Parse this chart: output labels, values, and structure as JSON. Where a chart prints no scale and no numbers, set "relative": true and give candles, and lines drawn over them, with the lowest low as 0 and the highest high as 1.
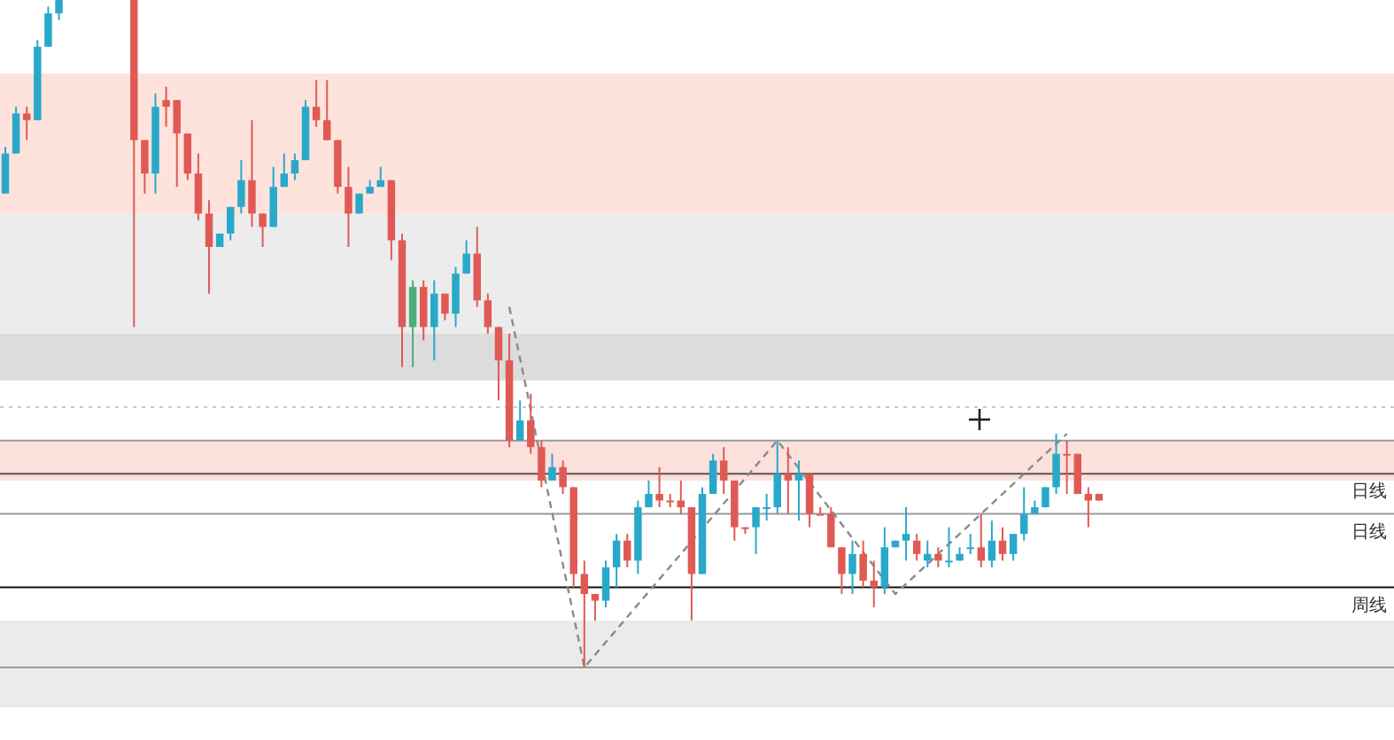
{
  "chart_data": {
    "type": "candlestick",
    "relative": true,
    "categories": [
      null,
      null,
      null,
      null,
      null,
      null,
      null,
      null,
      null,
      null,
      null,
      null,
      null,
      null,
      null,
      null,
      null,
      null,
      null,
      null,
      null,
      null,
      null,
      null,
      null,
      null,
      null,
      null,
      null,
      null,
      null,
      null,
      null,
      null,
      null,
      null,
      null,
      null,
      null,
      null,
      null,
      null,
      null,
      null,
      null,
      null,
      null,
      null,
      null,
      null,
      null,
      null,
      null,
      null,
      null,
      null,
      null,
      null,
      null,
      null,
      null,
      null,
      null,
      null,
      null,
      null,
      null,
      null,
      null,
      null,
      null,
      null,
      null,
      null,
      null,
      null,
      null,
      null,
      null,
      null,
      null,
      null,
      null,
      null,
      null,
      null,
      null,
      null,
      null,
      null,
      null,
      null,
      null,
      null,
      null,
      null,
      null,
      null,
      null,
      null,
      null,
      null,
      null
    ],
    "ohlc": [
      [
        0.71,
        0.78,
        0.71,
        0.77
      ],
      [
        0.77,
        0.84,
        0.77,
        0.83
      ],
      [
        0.83,
        0.84,
        0.79,
        0.82
      ],
      [
        0.82,
        0.94,
        0.82,
        0.93
      ],
      [
        0.93,
        0.99,
        0.93,
        0.98
      ],
      [
        0.98,
        1.0,
        0.97,
        1.0
      ],
      null,
      null,
      null,
      null,
      null,
      null,
      [
        1.0,
        1.0,
        0.51,
        0.79
      ],
      [
        0.79,
        0.79,
        0.71,
        0.74
      ],
      [
        0.74,
        0.86,
        0.71,
        0.84
      ],
      [
        0.85,
        0.87,
        0.81,
        0.84
      ],
      [
        0.85,
        0.85,
        0.72,
        0.8
      ],
      [
        0.8,
        0.8,
        0.73,
        0.74
      ],
      [
        0.74,
        0.77,
        0.67,
        0.68
      ],
      [
        0.68,
        0.7,
        0.56,
        0.63
      ],
      [
        0.63,
        0.65,
        0.63,
        0.65
      ],
      [
        0.65,
        0.69,
        0.64,
        0.69
      ],
      [
        0.69,
        0.76,
        0.68,
        0.73
      ],
      [
        0.73,
        0.82,
        0.66,
        0.68
      ],
      [
        0.68,
        0.68,
        0.63,
        0.66
      ],
      [
        0.66,
        0.75,
        0.66,
        0.72
      ],
      [
        0.72,
        0.77,
        0.72,
        0.74
      ],
      [
        0.74,
        0.77,
        0.73,
        0.76
      ],
      [
        0.76,
        0.85,
        0.76,
        0.84
      ],
      [
        0.84,
        0.88,
        0.81,
        0.82
      ],
      [
        0.82,
        0.88,
        0.79,
        0.79
      ],
      [
        0.79,
        0.79,
        0.71,
        0.72
      ],
      [
        0.72,
        0.75,
        0.63,
        0.68
      ],
      [
        0.68,
        0.71,
        0.68,
        0.71
      ],
      [
        0.71,
        0.73,
        0.71,
        0.72
      ],
      [
        0.72,
        0.75,
        0.72,
        0.73
      ],
      [
        0.73,
        0.73,
        0.61,
        0.64
      ],
      [
        0.64,
        0.65,
        0.45,
        0.51
      ],
      [
        0.51,
        0.58,
        0.45,
        0.57
      ],
      [
        0.57,
        0.58,
        0.49,
        0.51
      ],
      [
        0.51,
        0.58,
        0.46,
        0.56
      ],
      [
        0.56,
        0.56,
        0.52,
        0.53
      ],
      [
        0.53,
        0.6,
        0.51,
        0.59
      ],
      [
        0.59,
        0.64,
        0.59,
        0.62
      ],
      [
        0.62,
        0.66,
        0.54,
        0.55
      ],
      [
        0.55,
        0.56,
        0.5,
        0.51
      ],
      [
        0.51,
        0.51,
        0.4,
        0.46
      ],
      [
        0.46,
        0.5,
        0.33,
        0.34
      ],
      [
        0.34,
        0.4,
        0.34,
        0.37
      ],
      [
        0.37,
        0.41,
        0.32,
        0.33
      ],
      [
        0.33,
        0.34,
        0.27,
        0.28
      ],
      [
        0.28,
        0.32,
        0.28,
        0.3
      ],
      [
        0.3,
        0.31,
        0.26,
        0.27
      ],
      [
        0.27,
        0.27,
        0.12,
        0.14
      ],
      [
        0.14,
        0.16,
        0.0,
        0.11
      ],
      [
        0.11,
        0.11,
        0.07,
        0.1
      ],
      [
        0.1,
        0.16,
        0.09,
        0.15
      ],
      [
        0.15,
        0.2,
        0.12,
        0.19
      ],
      [
        0.19,
        0.2,
        0.15,
        0.16
      ],
      [
        0.16,
        0.25,
        0.14,
        0.24
      ],
      [
        0.24,
        0.28,
        0.24,
        0.26
      ],
      [
        0.26,
        0.3,
        0.24,
        0.25
      ],
      [
        0.25,
        0.26,
        0.24,
        0.25
      ],
      [
        0.25,
        0.28,
        0.23,
        0.24
      ],
      [
        0.24,
        0.24,
        0.07,
        0.14
      ],
      [
        0.14,
        0.27,
        0.14,
        0.26
      ],
      [
        0.26,
        0.32,
        0.26,
        0.31
      ],
      [
        0.31,
        0.33,
        0.26,
        0.28
      ],
      [
        0.28,
        0.28,
        0.19,
        0.21
      ],
      [
        0.21,
        0.21,
        0.2,
        0.21
      ],
      [
        0.21,
        0.24,
        0.17,
        0.24
      ],
      [
        0.24,
        0.26,
        0.22,
        0.24
      ],
      [
        0.24,
        0.34,
        0.23,
        0.29
      ],
      [
        0.29,
        0.33,
        0.23,
        0.28
      ],
      [
        0.28,
        0.31,
        0.22,
        0.29
      ],
      [
        0.29,
        0.29,
        0.21,
        0.23
      ],
      [
        0.23,
        0.24,
        0.23,
        0.23
      ],
      [
        0.23,
        0.24,
        0.18,
        0.18
      ],
      [
        0.18,
        0.18,
        0.11,
        0.14
      ],
      [
        0.14,
        0.19,
        0.11,
        0.17
      ],
      [
        0.17,
        0.19,
        0.12,
        0.13
      ],
      [
        0.13,
        0.16,
        0.09,
        0.12
      ],
      [
        0.12,
        0.21,
        0.11,
        0.18
      ],
      [
        0.18,
        0.19,
        0.18,
        0.19
      ],
      [
        0.19,
        0.24,
        0.16,
        0.2
      ],
      [
        0.19,
        0.2,
        0.16,
        0.17
      ],
      [
        0.16,
        0.19,
        0.15,
        0.17
      ],
      [
        0.17,
        0.18,
        0.15,
        0.16
      ],
      [
        0.16,
        0.21,
        0.15,
        0.16
      ],
      [
        0.16,
        0.18,
        0.16,
        0.17
      ],
      [
        0.18,
        0.2,
        0.17,
        0.18
      ],
      [
        0.18,
        0.23,
        0.15,
        0.16
      ],
      [
        0.16,
        0.22,
        0.15,
        0.19
      ],
      [
        0.19,
        0.21,
        0.16,
        0.17
      ],
      [
        0.17,
        0.2,
        0.16,
        0.2
      ],
      [
        0.2,
        0.27,
        0.19,
        0.23
      ],
      [
        0.23,
        0.25,
        0.23,
        0.24
      ],
      [
        0.24,
        0.27,
        0.24,
        0.27
      ],
      [
        0.27,
        0.35,
        0.26,
        0.32
      ],
      [
        0.32,
        0.34,
        0.26,
        0.32
      ],
      [
        0.32,
        0.32,
        0.26,
        0.26
      ],
      [
        0.26,
        0.27,
        0.21,
        0.25
      ],
      [
        0.26,
        0.26,
        0.25,
        0.25
      ]
    ],
    "colors": [
      "#29a9c9",
      "#29a9c9",
      "#e05a55",
      "#29a9c9",
      "#29a9c9",
      "#29a9c9",
      null,
      null,
      null,
      null,
      null,
      null,
      "#e05a55",
      "#e05a55",
      "#29a9c9",
      "#e05a55",
      "#e05a55",
      "#e05a55",
      "#e05a55",
      "#e05a55",
      "#29a9c9",
      "#29a9c9",
      "#29a9c9",
      "#e05a55",
      "#e05a55",
      "#29a9c9",
      "#29a9c9",
      "#29a9c9",
      "#29a9c9",
      "#e05a55",
      "#e05a55",
      "#e05a55",
      "#e05a55",
      "#29a9c9",
      "#29a9c9",
      "#29a9c9",
      "#e05a55",
      "#e05a55",
      "#4caf7a",
      "#e05a55",
      "#29a9c9",
      "#e05a55",
      "#29a9c9",
      "#29a9c9",
      "#e05a55",
      "#e05a55",
      "#e05a55",
      "#e05a55",
      "#29a9c9",
      "#e05a55",
      "#e05a55",
      "#29a9c9",
      "#e05a55",
      "#e05a55",
      "#e05a55",
      "#e05a55",
      "#29a9c9",
      "#29a9c9",
      "#e05a55",
      "#29a9c9",
      "#29a9c9",
      "#e05a55",
      "#e05a55",
      "#e05a55",
      "#e05a55",
      "#29a9c9",
      "#29a9c9",
      "#e05a55",
      "#e05a55",
      "#e05a55",
      "#29a9c9",
      "#29a9c9",
      "#29a9c9",
      "#e05a55",
      "#29a9c9",
      "#e05a55",
      "#e05a55",
      "#e05a55",
      "#e05a55",
      "#29a9c9",
      "#e05a55",
      "#e05a55",
      "#29a9c9",
      "#29a9c9",
      "#29a9c9",
      "#e05a55",
      "#29a9c9",
      "#e05a55",
      "#29a9c9",
      "#29a9c9",
      "#29a9c9",
      "#e05a55",
      "#29a9c9",
      "#e05a55",
      "#29a9c9",
      "#29a9c9",
      "#29a9c9",
      "#29a9c9",
      "#29a9c9",
      "#e05a55",
      "#e05a55",
      "#e05a55",
      "#e05a55"
    ],
    "series": [
      {
        "type": "line",
        "color": "#8a8a8a",
        "line_style": "dashed",
        "values": [
          null,
          null,
          null,
          null,
          null,
          null,
          null,
          null,
          null,
          null,
          null,
          null,
          null,
          null,
          null,
          null,
          null,
          null,
          null,
          null,
          null,
          null,
          null,
          null,
          null,
          null,
          null,
          null,
          null,
          null,
          null,
          null,
          null,
          null,
          null,
          null,
          null,
          null,
          null,
          null,
          null,
          null,
          null,
          null,
          null,
          null,
          null,
          0.54,
          null,
          null,
          null,
          null,
          null,
          null,
          0.0,
          null,
          null,
          null,
          null,
          null,
          null,
          null,
          null,
          null,
          null,
          null,
          null,
          null,
          null,
          null,
          null,
          null,
          0.34,
          null,
          null,
          null,
          null,
          null,
          null,
          null,
          null,
          null,
          null,
          0.11,
          null,
          null,
          null,
          null,
          null,
          null,
          null,
          null,
          null,
          null,
          null,
          null,
          null,
          null,
          null,
          0.35,
          null,
          null,
          null
        ]
      }
    ],
    "bands": [
      {
        "axis": "y",
        "from": 0.43,
        "to": 0.5,
        "color": "#dcdcdc"
      },
      {
        "axis": "y",
        "from": 0.5,
        "to": 0.68,
        "color": "#ececec"
      },
      {
        "axis": "y",
        "from": 0.68,
        "to": 0.89,
        "color": "#fde3dc"
      },
      {
        "axis": "y",
        "from": 0.28,
        "to": 0.34,
        "color": "#fbe0dc"
      },
      {
        "axis": "y",
        "from": -0.06,
        "to": 0.07,
        "color": "#ebebeb"
      }
    ],
    "ref_lines": [
      {
        "axis": "y",
        "value": 0.39,
        "color": "#c8c8c8",
        "line_style": "dotted"
      },
      {
        "axis": "y",
        "value": 0.34,
        "color": "#9a9a9a"
      },
      {
        "axis": "y",
        "value": 0.29,
        "color": "#555555",
        "label": "日线"
      },
      {
        "axis": "y",
        "value": 0.23,
        "color": "#9a9a9a",
        "label": "日线"
      },
      {
        "axis": "y",
        "value": 0.12,
        "color": "#111111",
        "label": "周线"
      },
      {
        "axis": "y",
        "value": 0.0,
        "color": "#9a9a9a"
      }
    ]
  }
}
